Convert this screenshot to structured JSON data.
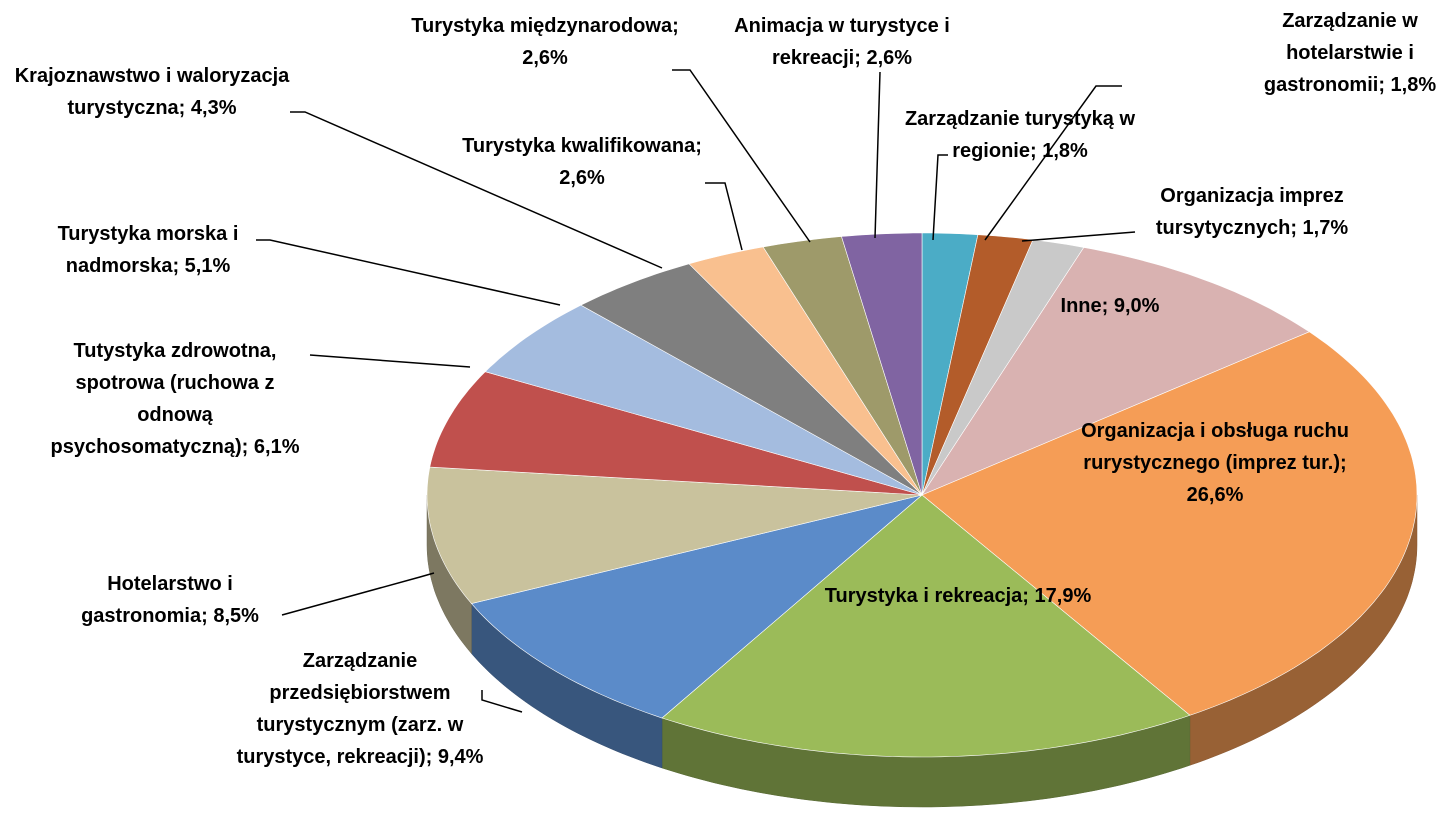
{
  "chart_data": {
    "type": "pie3d",
    "values": [
      1.8,
      1.8,
      1.7,
      9.0,
      26.6,
      17.9,
      9.4,
      8.5,
      6.1,
      5.1,
      4.3,
      2.6,
      2.6,
      2.6
    ],
    "value_labels": [
      "Zarządzanie turystyką w regionie; 1,8%",
      "Zarządzanie w hotelarstwie i gastronomii; 1,8%",
      "Organizacja imprez tursytycznych; 1,7%",
      "Inne; 9,0%",
      "Organizacja i obsługa ruchu rurystycznego (imprez tur.); 26,6%",
      "Turystyka i rekreacja; 17,9%",
      "Zarządzanie przedsiębiorstwem turystycznym (zarz. w turystyce, rekreacji); 9,4%",
      "Hotelarstwo i gastronomia; 8,5%",
      "Tutystyka zdrowotna, spotrowa (ruchowa z odnową psychosomatyczną); 6,1%",
      "Turystyka morska i nadmorska; 5,1%",
      "Krajoznawstwo i waloryzacja turystyczna; 4,3%",
      "Turystyka kwalifikowana; 2,6%",
      "Turystyka międzynarodowa; 2,6%",
      "Animacja w turystyce i rekreacji; 2,6%"
    ],
    "colors": [
      "#4bacc6",
      "#b35c2a",
      "#c9c9c9",
      "#d9b2b1",
      "#f59d56",
      "#9bbb59",
      "#5b8bc9",
      "#c9c29d",
      "#c0504d",
      "#a4bcdf",
      "#7f7f7f",
      "#f9c08f",
      "#9e9a6a",
      "#8064a2"
    ]
  }
}
